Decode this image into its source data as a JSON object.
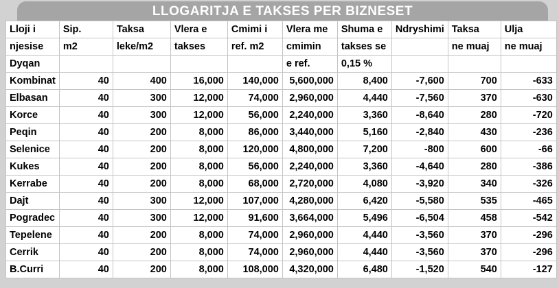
{
  "title": "LLOGARITJA E TAKSES PER BIZNESET",
  "header": {
    "columns": [
      {
        "lines": [
          "Lloji i",
          "njesise",
          "Dyqan"
        ]
      },
      {
        "lines": [
          "Sip.",
          "m2",
          ""
        ]
      },
      {
        "lines": [
          "Taksa",
          "leke/m2",
          ""
        ]
      },
      {
        "lines": [
          "Vlera e",
          "takses",
          ""
        ]
      },
      {
        "lines": [
          "Cmimi i",
          "ref. m2",
          ""
        ]
      },
      {
        "lines": [
          "Vlera me",
          "cmimin",
          "e ref."
        ]
      },
      {
        "lines": [
          "Shuma e",
          "takses se",
          "0,15 %"
        ]
      },
      {
        "lines": [
          "Ndryshimi",
          "",
          ""
        ]
      },
      {
        "lines": [
          "Taksa",
          "ne muaj",
          ""
        ]
      },
      {
        "lines": [
          "Ulja",
          "ne muaj",
          ""
        ]
      }
    ],
    "unit_type": "Dyqan"
  },
  "chart_data": {
    "type": "table",
    "title": "LLOGARITJA E TAKSES PER BIZNESET",
    "columns": [
      "Lloji i njesise",
      "Sip. m2",
      "Taksa leke/m2",
      "Vlera e takses",
      "Cmimi i ref. m2",
      "Vlera me cmimin e ref.",
      "Shuma e takses se 0,15 %",
      "Ndryshimi",
      "Taksa ne muaj",
      "Ulja ne muaj"
    ],
    "rows": [
      [
        "Kombinat",
        40,
        400,
        16000,
        140000,
        5600000,
        8400,
        -7600,
        700,
        -633
      ],
      [
        "Elbasan",
        40,
        300,
        12000,
        74000,
        2960000,
        4440,
        -7560,
        370,
        -630
      ],
      [
        "Korce",
        40,
        300,
        12000,
        56000,
        2240000,
        3360,
        -8640,
        280,
        -720
      ],
      [
        "Peqin",
        40,
        200,
        8000,
        86000,
        3440000,
        5160,
        -2840,
        430,
        -236
      ],
      [
        "Selenice",
        40,
        200,
        8000,
        120000,
        4800000,
        7200,
        -800,
        600,
        -66
      ],
      [
        "Kukes",
        40,
        200,
        8000,
        56000,
        2240000,
        3360,
        -4640,
        280,
        -386
      ],
      [
        "Kerrabe",
        40,
        200,
        8000,
        68000,
        2720000,
        4080,
        -3920,
        340,
        -326
      ],
      [
        "Dajt",
        40,
        300,
        12000,
        107000,
        4280000,
        6420,
        -5580,
        535,
        -465
      ],
      [
        "Pogradec",
        40,
        300,
        12000,
        91600,
        3664000,
        5496,
        -6504,
        458,
        -542
      ],
      [
        "Tepelene",
        40,
        200,
        8000,
        74000,
        2960000,
        4440,
        -3560,
        370,
        -296
      ],
      [
        "Cerrik",
        40,
        200,
        8000,
        74000,
        2960000,
        4440,
        -3560,
        370,
        -296
      ],
      [
        "B.Curri",
        40,
        200,
        8000,
        108000,
        4320000,
        6480,
        -1520,
        540,
        -127
      ]
    ]
  },
  "colors": {
    "title_bg": "#a5a5a5",
    "title_text": "#ffffff",
    "page_bg": "#d2d2d2",
    "cell_bg": "#ffffff",
    "grid_line": "#c4c4c4",
    "text": "#000000"
  }
}
